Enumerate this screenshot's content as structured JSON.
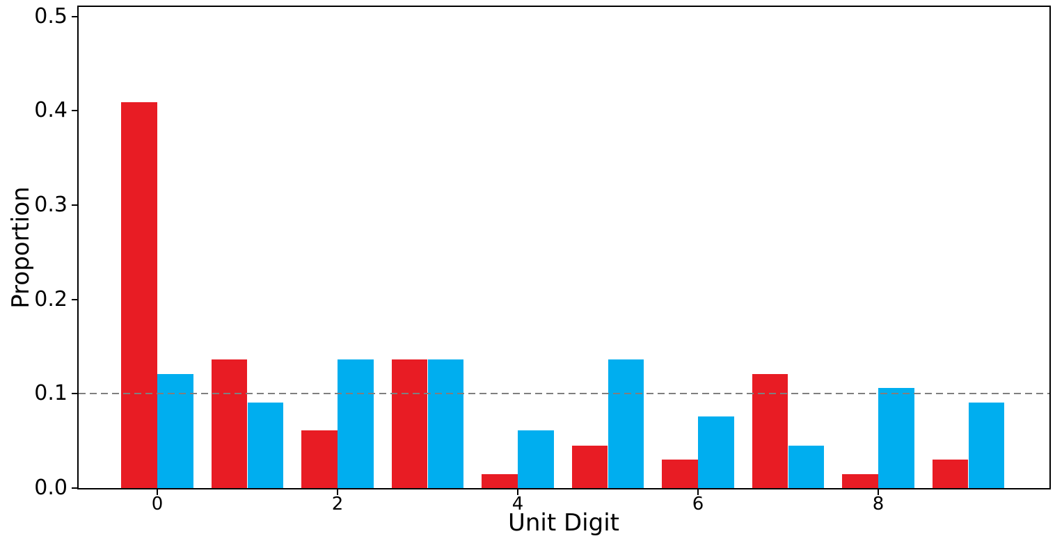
{
  "chart_data": {
    "type": "bar",
    "title": "",
    "xlabel": "Unit Digit",
    "ylabel": "Proportion",
    "categories": [
      0,
      1,
      2,
      3,
      4,
      5,
      6,
      7,
      8,
      9
    ],
    "series": [
      {
        "name": "red",
        "color": "#e81c24",
        "values": [
          0.409,
          0.136,
          0.061,
          0.136,
          0.015,
          0.045,
          0.03,
          0.121,
          0.015,
          0.03
        ]
      },
      {
        "name": "blue",
        "color": "#00aeef",
        "values": [
          0.121,
          0.091,
          0.136,
          0.136,
          0.061,
          0.136,
          0.076,
          0.045,
          0.106,
          0.091
        ]
      }
    ],
    "yticks": [
      {
        "label": "0.0",
        "value": 0.0
      },
      {
        "label": "0.1",
        "value": 0.1
      },
      {
        "label": "0.2",
        "value": 0.2
      },
      {
        "label": "0.3",
        "value": 0.3
      },
      {
        "label": "0.4",
        "value": 0.4
      },
      {
        "label": "0.5",
        "value": 0.5
      }
    ],
    "xticks": [
      {
        "label": "0",
        "value": 0
      },
      {
        "label": "2",
        "value": 2
      },
      {
        "label": "4",
        "value": 4
      },
      {
        "label": "6",
        "value": 6
      },
      {
        "label": "8",
        "value": 8
      }
    ],
    "ylim": [
      0,
      0.51
    ],
    "grid": false,
    "legend": null,
    "reference_line": {
      "y": 0.1,
      "style": "dashed",
      "color": "#7f7f7f"
    }
  }
}
